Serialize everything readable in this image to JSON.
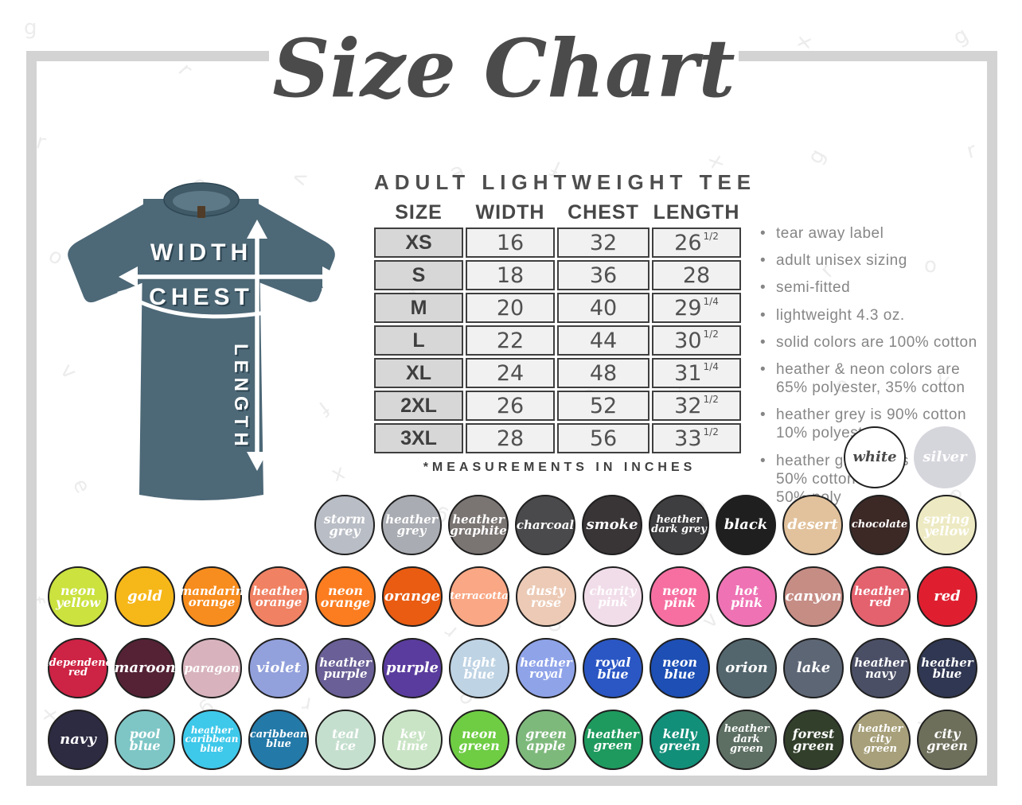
{
  "title": "Size Chart",
  "watermark_text": "grovefx",
  "product": {
    "heading": "ADULT LIGHTWEIGHT TEE",
    "columns": [
      "SIZE",
      "WIDTH",
      "CHEST",
      "LENGTH"
    ],
    "rows": [
      {
        "size": "XS",
        "width": "16",
        "chest": "32",
        "length": "26",
        "length_frac": "1/2"
      },
      {
        "size": "S",
        "width": "18",
        "chest": "36",
        "length": "28",
        "length_frac": ""
      },
      {
        "size": "M",
        "width": "20",
        "chest": "40",
        "length": "29",
        "length_frac": "1/4"
      },
      {
        "size": "L",
        "width": "22",
        "chest": "44",
        "length": "30",
        "length_frac": "1/2"
      },
      {
        "size": "XL",
        "width": "24",
        "chest": "48",
        "length": "31",
        "length_frac": "1/4"
      },
      {
        "size": "2XL",
        "width": "26",
        "chest": "52",
        "length": "32",
        "length_frac": "1/2"
      },
      {
        "size": "3XL",
        "width": "28",
        "chest": "56",
        "length": "33",
        "length_frac": "1/2"
      }
    ],
    "note": "*MEASUREMENTS IN INCHES"
  },
  "shirt": {
    "color": "#4d6877",
    "labels": {
      "width": "WIDTH",
      "chest": "CHEST",
      "length": "LENGTH"
    }
  },
  "bullets": [
    [
      "tear away label"
    ],
    [
      "adult unisex sizing"
    ],
    [
      "semi-fitted"
    ],
    [
      "lightweight 4.3 oz."
    ],
    [
      "solid colors are 100% cotton"
    ],
    [
      "heather & neon colors are",
      "65% polyester, 35% cotton"
    ],
    [
      "heather grey is 90% cotton",
      "10% polyester"
    ],
    [
      "heather graphite is",
      "50% cotton",
      "50% poly"
    ]
  ],
  "featured_swatches": [
    {
      "name": "white",
      "lines": [
        "white"
      ],
      "color": "#ffffff",
      "text_color": "#4a4a4a",
      "border": true
    },
    {
      "name": "silver",
      "lines": [
        "silver"
      ],
      "color": "#d5d5dc",
      "text_color": "#ffffff",
      "border": false
    }
  ],
  "swatch_rows": [
    [
      {
        "name": "storm grey",
        "lines": [
          "storm",
          "grey"
        ],
        "color": "#b9bdc5"
      },
      {
        "name": "heather grey",
        "lines": [
          "heather",
          "grey"
        ],
        "color": "#a9acb2"
      },
      {
        "name": "heather graphite",
        "lines": [
          "heather",
          "graphite"
        ],
        "color": "#7a7472"
      },
      {
        "name": "charcoal",
        "lines": [
          "charcoal"
        ],
        "color": "#4a4a4c"
      },
      {
        "name": "smoke",
        "lines": [
          "smoke"
        ],
        "color": "#393435"
      },
      {
        "name": "heather dark grey",
        "lines": [
          "heather",
          "dark grey"
        ],
        "color": "#3e3e40"
      },
      {
        "name": "black",
        "lines": [
          "black"
        ],
        "color": "#1f1f1f"
      },
      {
        "name": "desert",
        "lines": [
          "desert"
        ],
        "color": "#e2c29c"
      },
      {
        "name": "chocolate",
        "lines": [
          "chocolate"
        ],
        "color": "#3c2926"
      },
      {
        "name": "spring yellow",
        "lines": [
          "spring",
          "yellow"
        ],
        "color": "#edeac3"
      }
    ],
    [
      {
        "name": "neon yellow",
        "lines": [
          "neon",
          "yellow"
        ],
        "color": "#cbe23f"
      },
      {
        "name": "gold",
        "lines": [
          "gold"
        ],
        "color": "#f6b719"
      },
      {
        "name": "mandarin orange",
        "lines": [
          "mandarin",
          "orange"
        ],
        "color": "#f78d1e"
      },
      {
        "name": "heather orange",
        "lines": [
          "heather",
          "orange"
        ],
        "color": "#f08163"
      },
      {
        "name": "neon orange",
        "lines": [
          "neon",
          "orange"
        ],
        "color": "#fb7d20"
      },
      {
        "name": "orange",
        "lines": [
          "orange"
        ],
        "color": "#e95c12"
      },
      {
        "name": "terracotta",
        "lines": [
          "terracotta"
        ],
        "color": "#f9a784"
      },
      {
        "name": "dusty rose",
        "lines": [
          "dusty",
          "rose"
        ],
        "color": "#eccab5"
      },
      {
        "name": "charity pink",
        "lines": [
          "charity",
          "pink"
        ],
        "color": "#f1dde9"
      },
      {
        "name": "neon pink",
        "lines": [
          "neon",
          "pink"
        ],
        "color": "#f66fa0"
      },
      {
        "name": "hot pink",
        "lines": [
          "hot",
          "pink"
        ],
        "color": "#ee72b4"
      },
      {
        "name": "canyon",
        "lines": [
          "canyon"
        ],
        "color": "#c68d85"
      },
      {
        "name": "heather red",
        "lines": [
          "heather",
          "red"
        ],
        "color": "#e4626e"
      },
      {
        "name": "red",
        "lines": [
          "red"
        ],
        "color": "#df1f30"
      }
    ],
    [
      {
        "name": "independence red",
        "lines": [
          "independence",
          "red"
        ],
        "color": "#cd2344"
      },
      {
        "name": "maroon",
        "lines": [
          "maroon"
        ],
        "color": "#552235"
      },
      {
        "name": "paragon",
        "lines": [
          "paragon"
        ],
        "color": "#d8b3bd"
      },
      {
        "name": "violet",
        "lines": [
          "violet"
        ],
        "color": "#92a0dc"
      },
      {
        "name": "heather purple",
        "lines": [
          "heather",
          "purple"
        ],
        "color": "#6a5f96"
      },
      {
        "name": "purple",
        "lines": [
          "purple"
        ],
        "color": "#5a3c9e"
      },
      {
        "name": "light blue",
        "lines": [
          "light",
          "blue"
        ],
        "color": "#bed3e4"
      },
      {
        "name": "heather royal",
        "lines": [
          "heather",
          "royal"
        ],
        "color": "#8fa3e9"
      },
      {
        "name": "royal blue",
        "lines": [
          "royal",
          "blue"
        ],
        "color": "#2b57c5"
      },
      {
        "name": "neon blue",
        "lines": [
          "neon",
          "blue"
        ],
        "color": "#1d4fb5"
      },
      {
        "name": "orion",
        "lines": [
          "orion"
        ],
        "color": "#53666d"
      },
      {
        "name": "lake",
        "lines": [
          "lake"
        ],
        "color": "#5d6675"
      },
      {
        "name": "heather navy",
        "lines": [
          "heather",
          "navy"
        ],
        "color": "#4b4f66"
      },
      {
        "name": "heather blue",
        "lines": [
          "heather",
          "blue"
        ],
        "color": "#303752"
      }
    ],
    [
      {
        "name": "navy",
        "lines": [
          "navy"
        ],
        "color": "#2d2b42"
      },
      {
        "name": "pool blue",
        "lines": [
          "pool",
          "blue"
        ],
        "color": "#7ec6c6"
      },
      {
        "name": "heather caribbean blue",
        "lines": [
          "heather",
          "caribbean",
          "blue"
        ],
        "color": "#3ec8ea"
      },
      {
        "name": "caribbean blue",
        "lines": [
          "caribbean",
          "blue"
        ],
        "color": "#2379a8"
      },
      {
        "name": "teal ice",
        "lines": [
          "teal",
          "ice"
        ],
        "color": "#c5dfce"
      },
      {
        "name": "key lime",
        "lines": [
          "key",
          "lime"
        ],
        "color": "#c9e4c5"
      },
      {
        "name": "neon green",
        "lines": [
          "neon",
          "green"
        ],
        "color": "#6ecd43"
      },
      {
        "name": "green apple",
        "lines": [
          "green",
          "apple"
        ],
        "color": "#7eb97c"
      },
      {
        "name": "heather green",
        "lines": [
          "heather",
          "green"
        ],
        "color": "#1e9a5e"
      },
      {
        "name": "kelly green",
        "lines": [
          "kelly",
          "green"
        ],
        "color": "#128f79"
      },
      {
        "name": "heather dark green",
        "lines": [
          "heather",
          "dark green"
        ],
        "color": "#5d6f63"
      },
      {
        "name": "forest green",
        "lines": [
          "forest",
          "green"
        ],
        "color": "#32402b"
      },
      {
        "name": "heather city green",
        "lines": [
          "heather",
          "city green"
        ],
        "color": "#a7a07a"
      },
      {
        "name": "city green",
        "lines": [
          "city",
          "green"
        ],
        "color": "#6e6f5b"
      }
    ]
  ]
}
